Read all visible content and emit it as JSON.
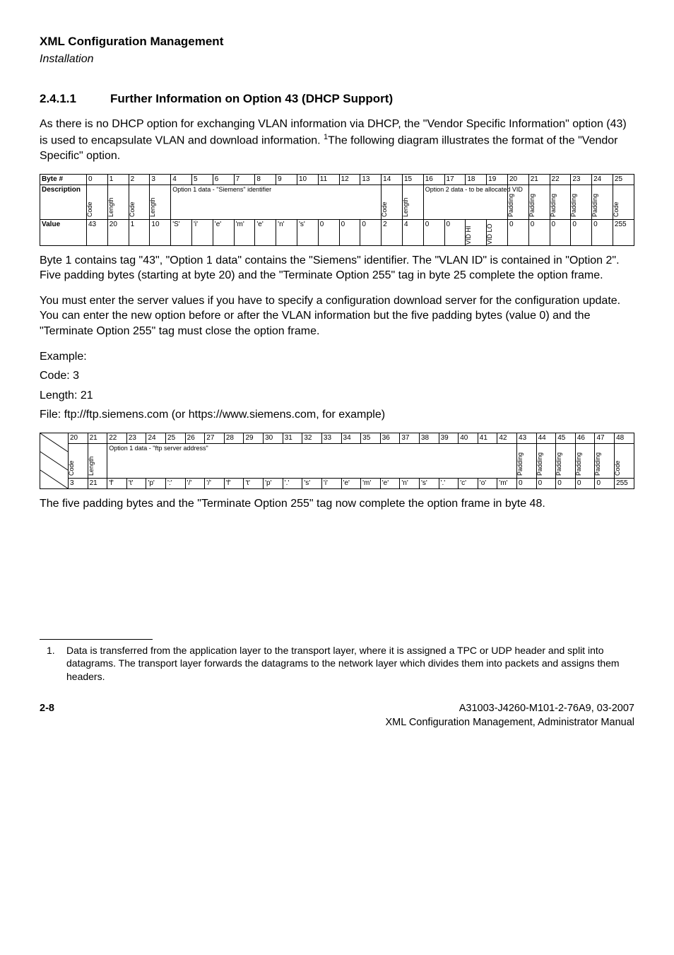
{
  "header": {
    "title": "XML Configuration Management",
    "subtitle": "Installation"
  },
  "section": {
    "number": "2.4.1.1",
    "title": "Further Information on Option 43 (DHCP Support)"
  },
  "intro_p1a": "As there is no DHCP option for exchanging VLAN information via DHCP, the \"Vendor Specific Information\" option (43) is used to encapsulate VLAN and download information. ",
  "intro_p1b": "The following diagram illustrates the format of the \"Vendor Specific\" option.",
  "table1": {
    "row_labels": [
      "Byte #",
      "Description",
      "Value"
    ],
    "bytes": [
      "0",
      "1",
      "2",
      "3",
      "4",
      "5",
      "6",
      "7",
      "8",
      "9",
      "10",
      "11",
      "12",
      "13",
      "14",
      "15",
      "16",
      "17",
      "18",
      "19",
      "20",
      "21",
      "22",
      "23",
      "24",
      "25"
    ],
    "desc_rot": {
      "0": "Code",
      "1": "Length",
      "2": "Code",
      "3": "Length",
      "14": "Code",
      "15": "Length",
      "20": "Padding",
      "21": "Padding",
      "22": "Padding",
      "23": "Padding",
      "24": "Padding",
      "25": "Code"
    },
    "desc_span1": "Option 1 data - \"Siemens\" identifier",
    "desc_span2": "Option 2 data - to be allocated VID",
    "values": [
      "43",
      "20",
      "1",
      "10",
      "'S'",
      "'i'",
      "'e'",
      "'m'",
      "'e'",
      "'n'",
      "'s'",
      "0",
      "0",
      "0",
      "2",
      "4",
      "0",
      "0",
      "VID HI",
      "VID LO",
      "0",
      "0",
      "0",
      "0",
      "0",
      "255"
    ],
    "value_rot_idx": [
      18,
      19
    ]
  },
  "after_t1_p1": "Byte 1 contains tag \"43\", \"Option 1 data\" contains the \"Siemens\" identifier. The \"VLAN ID\" is contained in \"Option 2\". Five padding bytes (starting at byte 20) and the \"Terminate Option 255\" tag in byte 25 complete the option frame.",
  "after_t1_p2": "You must enter the server values if you have to specify a configuration download server for the configuration update. You can enter the new option before or after the VLAN information but the five padding bytes (value 0) and the \"Terminate Option 255\" tag must close the option frame.",
  "example_label": "Example:",
  "code_line": "Code: 3",
  "length_line": "Length: 21",
  "file_line": "File: ftp://ftp.siemens.com (or https://www.siemens.com, for example)",
  "table2": {
    "bytes": [
      "20",
      "21",
      "22",
      "23",
      "24",
      "25",
      "26",
      "27",
      "28",
      "29",
      "30",
      "31",
      "32",
      "33",
      "34",
      "35",
      "36",
      "37",
      "38",
      "39",
      "40",
      "41",
      "42",
      "43",
      "44",
      "45",
      "46",
      "47",
      "48"
    ],
    "desc_rot": {
      "0": "Code",
      "1": "Length",
      "23": "Padding",
      "24": "Padding",
      "25": "Padding",
      "26": "Padding",
      "27": "Padding",
      "28": "Code"
    },
    "desc_span": "Option 1 data - \"ftp server address\"",
    "values": [
      "3",
      "21",
      "'f'",
      "'t'",
      "'p'",
      "':'",
      "'/'",
      "'/'",
      "'f'",
      "'t'",
      "'p'",
      "'.'",
      "'s'",
      "'i'",
      "'e'",
      "'m'",
      "'e'",
      "'n'",
      "'s'",
      "'.'",
      "'c'",
      "'o'",
      "'m'",
      "0",
      "0",
      "0",
      "0",
      "0",
      "255"
    ]
  },
  "after_t2": "The five padding bytes and the \"Terminate Option 255\" tag now complete the option frame in byte 48.",
  "footnote": {
    "num": "1.",
    "text": "Data is transferred from the application layer to the transport layer, where it is assigned a TPC or UDP header and split into datagrams. The transport layer forwards the datagrams to the network layer which divides them into packets and assigns them headers."
  },
  "footer": {
    "page": "2-8",
    "doc_id": "A31003-J4260-M101-2-76A9, 03-2007",
    "doc_name": "XML Configuration Management, Administrator Manual"
  }
}
